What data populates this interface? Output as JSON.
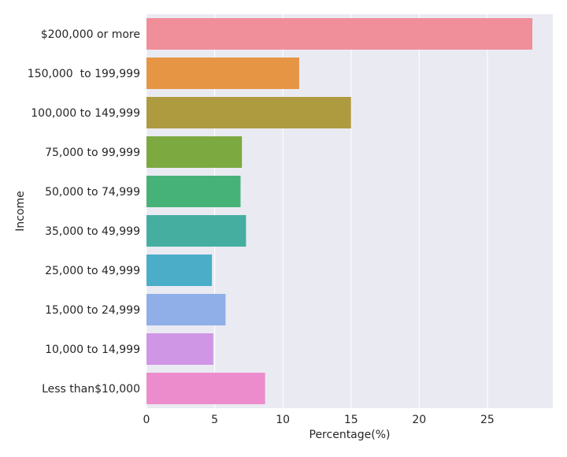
{
  "chart_data": {
    "type": "bar",
    "orientation": "horizontal",
    "categories": [
      "$200,000 or more",
      "150,000  to 199,999",
      "100,000 to 149,999",
      "75,000 to 99,999",
      "50,000 to 74,999",
      "35,000 to 49,999",
      "25,000 to 49,999",
      "15,000 to 24,999",
      "10,000 to 14,999",
      "Less than$10,000"
    ],
    "values": [
      28.3,
      11.2,
      15.0,
      7.0,
      6.9,
      7.3,
      4.8,
      5.8,
      4.9,
      8.7
    ],
    "colors": [
      "#f08e9a",
      "#e59544",
      "#ae9b40",
      "#7ca940",
      "#47b278",
      "#45aea1",
      "#4badc8",
      "#90aee7",
      "#d096e6",
      "#ec8ccc"
    ],
    "xlabel": "Percentage(%)",
    "ylabel": "Income",
    "xlim": [
      0,
      29.8
    ],
    "xticks": [
      0,
      5,
      10,
      15,
      20,
      25
    ],
    "grid": true,
    "background": "#eaeaf2"
  }
}
